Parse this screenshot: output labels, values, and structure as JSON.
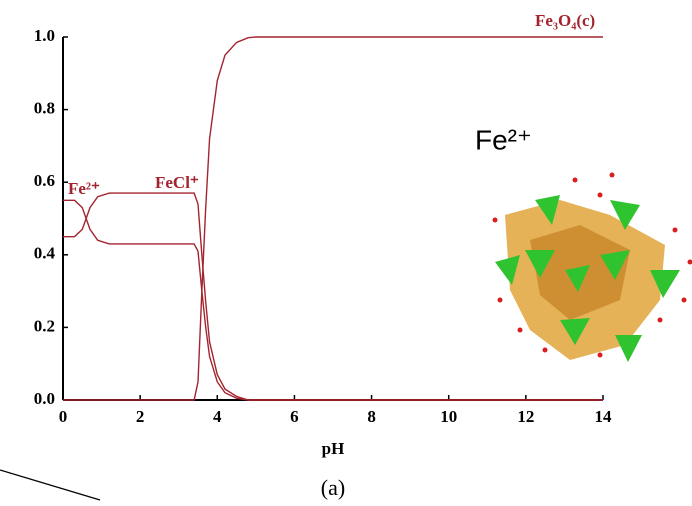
{
  "chart_data": {
    "type": "line",
    "x": [
      0,
      0.3,
      0.5,
      0.7,
      0.9,
      1.2,
      2,
      3,
      3.4,
      3.5,
      3.6,
      3.7,
      3.8,
      4,
      4.2,
      4.5,
      4.8,
      5,
      6,
      8,
      10,
      12,
      14
    ],
    "series": [
      {
        "name": "Fe²⁺",
        "color": "#a3242f",
        "values": [
          0.55,
          0.55,
          0.53,
          0.47,
          0.44,
          0.43,
          0.43,
          0.43,
          0.43,
          0.41,
          0.3,
          0.2,
          0.12,
          0.05,
          0.02,
          0.005,
          0,
          0,
          0,
          0,
          0,
          0,
          0
        ]
      },
      {
        "name": "FeCl⁺",
        "color": "#a3242f",
        "values": [
          0.45,
          0.45,
          0.47,
          0.53,
          0.56,
          0.57,
          0.57,
          0.57,
          0.57,
          0.54,
          0.4,
          0.27,
          0.16,
          0.07,
          0.03,
          0.01,
          0,
          0,
          0,
          0,
          0,
          0,
          0
        ]
      },
      {
        "name": "Fe₃O₄(c)",
        "color": "#a3242f",
        "values": [
          0,
          0,
          0,
          0,
          0,
          0,
          0,
          0,
          0,
          0.05,
          0.3,
          0.53,
          0.72,
          0.88,
          0.95,
          0.985,
          0.998,
          1,
          1,
          1,
          1,
          1,
          1
        ]
      }
    ],
    "xlabel": "pH",
    "caption": "(a)",
    "annotation": "Fe²⁺",
    "xlim": [
      0,
      14
    ],
    "xticks": [
      0,
      2,
      4,
      6,
      8,
      10,
      12,
      14
    ],
    "ylim": [
      0,
      1
    ],
    "yticks": [
      {
        "value": 0,
        "label": "0.0"
      },
      0.2,
      0.4,
      0.6,
      0.8,
      {
        "value": 1,
        "label": "1.0"
      }
    ]
  }
}
